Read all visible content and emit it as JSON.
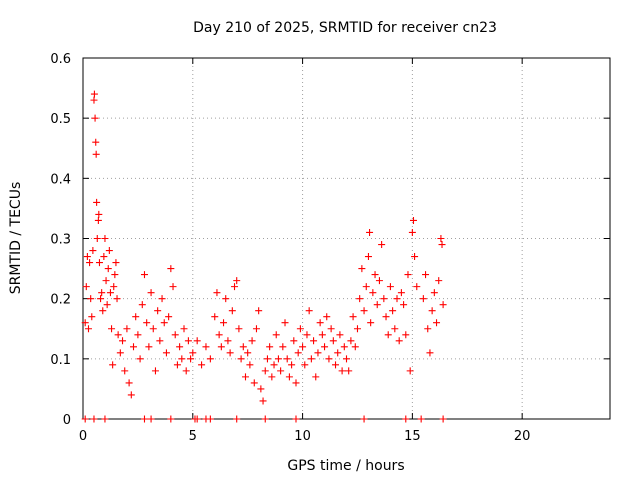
{
  "chart_data": {
    "type": "scatter",
    "title": "Day 210 of 2025, SRMTID for receiver cn23",
    "xlabel": "GPS time / hours",
    "ylabel": "SRMTID / TECUs",
    "xlim": [
      0,
      24
    ],
    "ylim": [
      0,
      0.6
    ],
    "xticks": [
      0,
      5,
      10,
      15,
      20
    ],
    "yticks": [
      0,
      0.1,
      0.2,
      0.3,
      0.4,
      0.5,
      0.6
    ],
    "xtick_labels": [
      "0",
      "5",
      "10",
      "15",
      "20"
    ],
    "ytick_labels": [
      "0",
      "0.1",
      "0.2",
      "0.3",
      "0.4",
      "0.5",
      "0.6"
    ],
    "grid": true,
    "marker": "+",
    "color": "#ff0000",
    "series": [
      {
        "name": "SRMTID",
        "points": [
          [
            0.1,
            0.16
          ],
          [
            0.15,
            0.22
          ],
          [
            0.2,
            0.27
          ],
          [
            0.25,
            0.15
          ],
          [
            0.3,
            0.26
          ],
          [
            0.35,
            0.2
          ],
          [
            0.4,
            0.17
          ],
          [
            0.45,
            0.28
          ],
          [
            0.5,
            0.53
          ],
          [
            0.52,
            0.54
          ],
          [
            0.55,
            0.5
          ],
          [
            0.58,
            0.46
          ],
          [
            0.6,
            0.44
          ],
          [
            0.62,
            0.36
          ],
          [
            0.65,
            0.3
          ],
          [
            0.7,
            0.33
          ],
          [
            0.72,
            0.34
          ],
          [
            0.75,
            0.26
          ],
          [
            0.8,
            0.2
          ],
          [
            0.85,
            0.21
          ],
          [
            0.9,
            0.18
          ],
          [
            0.95,
            0.27
          ],
          [
            1.0,
            0.3
          ],
          [
            1.05,
            0.23
          ],
          [
            1.1,
            0.19
          ],
          [
            1.15,
            0.25
          ],
          [
            1.2,
            0.28
          ],
          [
            1.25,
            0.21
          ],
          [
            1.3,
            0.15
          ],
          [
            1.35,
            0.09
          ],
          [
            1.4,
            0.22
          ],
          [
            1.45,
            0.24
          ],
          [
            1.5,
            0.26
          ],
          [
            1.55,
            0.2
          ],
          [
            1.6,
            0.14
          ],
          [
            1.7,
            0.11
          ],
          [
            1.8,
            0.13
          ],
          [
            1.9,
            0.08
          ],
          [
            2.0,
            0.15
          ],
          [
            2.1,
            0.06
          ],
          [
            2.2,
            0.04
          ],
          [
            2.3,
            0.12
          ],
          [
            2.4,
            0.17
          ],
          [
            2.5,
            0.14
          ],
          [
            2.6,
            0.1
          ],
          [
            2.7,
            0.19
          ],
          [
            2.8,
            0.24
          ],
          [
            2.9,
            0.16
          ],
          [
            3.0,
            0.12
          ],
          [
            3.1,
            0.21
          ],
          [
            3.2,
            0.15
          ],
          [
            3.3,
            0.08
          ],
          [
            3.4,
            0.18
          ],
          [
            3.5,
            0.13
          ],
          [
            3.6,
            0.2
          ],
          [
            3.7,
            0.16
          ],
          [
            3.8,
            0.11
          ],
          [
            3.9,
            0.17
          ],
          [
            4.0,
            0.25
          ],
          [
            4.1,
            0.22
          ],
          [
            4.2,
            0.14
          ],
          [
            4.3,
            0.09
          ],
          [
            4.4,
            0.12
          ],
          [
            4.5,
            0.1
          ],
          [
            4.6,
            0.15
          ],
          [
            4.7,
            0.08
          ],
          [
            4.8,
            0.13
          ],
          [
            4.9,
            0.1
          ],
          [
            5.0,
            0.11
          ],
          [
            5.2,
            0.13
          ],
          [
            5.4,
            0.09
          ],
          [
            5.6,
            0.12
          ],
          [
            5.8,
            0.1
          ],
          [
            6.0,
            0.17
          ],
          [
            6.1,
            0.21
          ],
          [
            6.2,
            0.14
          ],
          [
            6.3,
            0.12
          ],
          [
            6.4,
            0.16
          ],
          [
            6.5,
            0.2
          ],
          [
            6.6,
            0.13
          ],
          [
            6.7,
            0.11
          ],
          [
            6.8,
            0.18
          ],
          [
            6.9,
            0.22
          ],
          [
            7.0,
            0.23
          ],
          [
            7.1,
            0.15
          ],
          [
            7.2,
            0.1
          ],
          [
            7.3,
            0.12
          ],
          [
            7.4,
            0.07
          ],
          [
            7.5,
            0.11
          ],
          [
            7.6,
            0.09
          ],
          [
            7.7,
            0.13
          ],
          [
            7.8,
            0.06
          ],
          [
            7.9,
            0.15
          ],
          [
            8.0,
            0.18
          ],
          [
            8.1,
            0.05
          ],
          [
            8.2,
            0.03
          ],
          [
            8.3,
            0.08
          ],
          [
            8.4,
            0.1
          ],
          [
            8.5,
            0.12
          ],
          [
            8.6,
            0.07
          ],
          [
            8.7,
            0.09
          ],
          [
            8.8,
            0.14
          ],
          [
            8.9,
            0.1
          ],
          [
            9.0,
            0.08
          ],
          [
            9.1,
            0.12
          ],
          [
            9.2,
            0.16
          ],
          [
            9.3,
            0.1
          ],
          [
            9.4,
            0.07
          ],
          [
            9.5,
            0.09
          ],
          [
            9.6,
            0.13
          ],
          [
            9.7,
            0.06
          ],
          [
            9.8,
            0.11
          ],
          [
            9.9,
            0.15
          ],
          [
            10.0,
            0.12
          ],
          [
            10.1,
            0.09
          ],
          [
            10.2,
            0.14
          ],
          [
            10.3,
            0.18
          ],
          [
            10.4,
            0.1
          ],
          [
            10.5,
            0.13
          ],
          [
            10.6,
            0.07
          ],
          [
            10.7,
            0.11
          ],
          [
            10.8,
            0.16
          ],
          [
            10.9,
            0.14
          ],
          [
            11.0,
            0.12
          ],
          [
            11.1,
            0.17
          ],
          [
            11.2,
            0.1
          ],
          [
            11.3,
            0.15
          ],
          [
            11.4,
            0.13
          ],
          [
            11.5,
            0.09
          ],
          [
            11.6,
            0.11
          ],
          [
            11.7,
            0.14
          ],
          [
            11.8,
            0.08
          ],
          [
            11.9,
            0.12
          ],
          [
            12.0,
            0.1
          ],
          [
            12.1,
            0.08
          ],
          [
            12.2,
            0.13
          ],
          [
            12.3,
            0.17
          ],
          [
            12.4,
            0.12
          ],
          [
            12.5,
            0.15
          ],
          [
            12.6,
            0.2
          ],
          [
            12.7,
            0.25
          ],
          [
            12.8,
            0.18
          ],
          [
            12.9,
            0.22
          ],
          [
            13.0,
            0.27
          ],
          [
            13.05,
            0.31
          ],
          [
            13.1,
            0.16
          ],
          [
            13.2,
            0.21
          ],
          [
            13.3,
            0.24
          ],
          [
            13.4,
            0.19
          ],
          [
            13.5,
            0.23
          ],
          [
            13.6,
            0.29
          ],
          [
            13.7,
            0.2
          ],
          [
            13.8,
            0.17
          ],
          [
            13.9,
            0.14
          ],
          [
            14.0,
            0.22
          ],
          [
            14.1,
            0.18
          ],
          [
            14.2,
            0.15
          ],
          [
            14.3,
            0.2
          ],
          [
            14.4,
            0.13
          ],
          [
            14.5,
            0.21
          ],
          [
            14.6,
            0.19
          ],
          [
            14.7,
            0.14
          ],
          [
            14.8,
            0.24
          ],
          [
            14.9,
            0.08
          ],
          [
            15.0,
            0.31
          ],
          [
            15.05,
            0.33
          ],
          [
            15.1,
            0.27
          ],
          [
            15.2,
            0.22
          ],
          [
            15.5,
            0.2
          ],
          [
            15.6,
            0.24
          ],
          [
            15.7,
            0.15
          ],
          [
            15.8,
            0.11
          ],
          [
            15.9,
            0.18
          ],
          [
            16.0,
            0.21
          ],
          [
            16.1,
            0.16
          ],
          [
            16.2,
            0.23
          ],
          [
            16.3,
            0.3
          ],
          [
            16.35,
            0.29
          ],
          [
            16.4,
            0.19
          ]
        ]
      }
    ],
    "baseline_markers_x": [
      0.1,
      0.5,
      1.0,
      2.8,
      3.1,
      4.0,
      5.1,
      5.2,
      5.6,
      5.8,
      7.0,
      8.3,
      9.7,
      12.8,
      14.7,
      15.4,
      16.4
    ]
  }
}
